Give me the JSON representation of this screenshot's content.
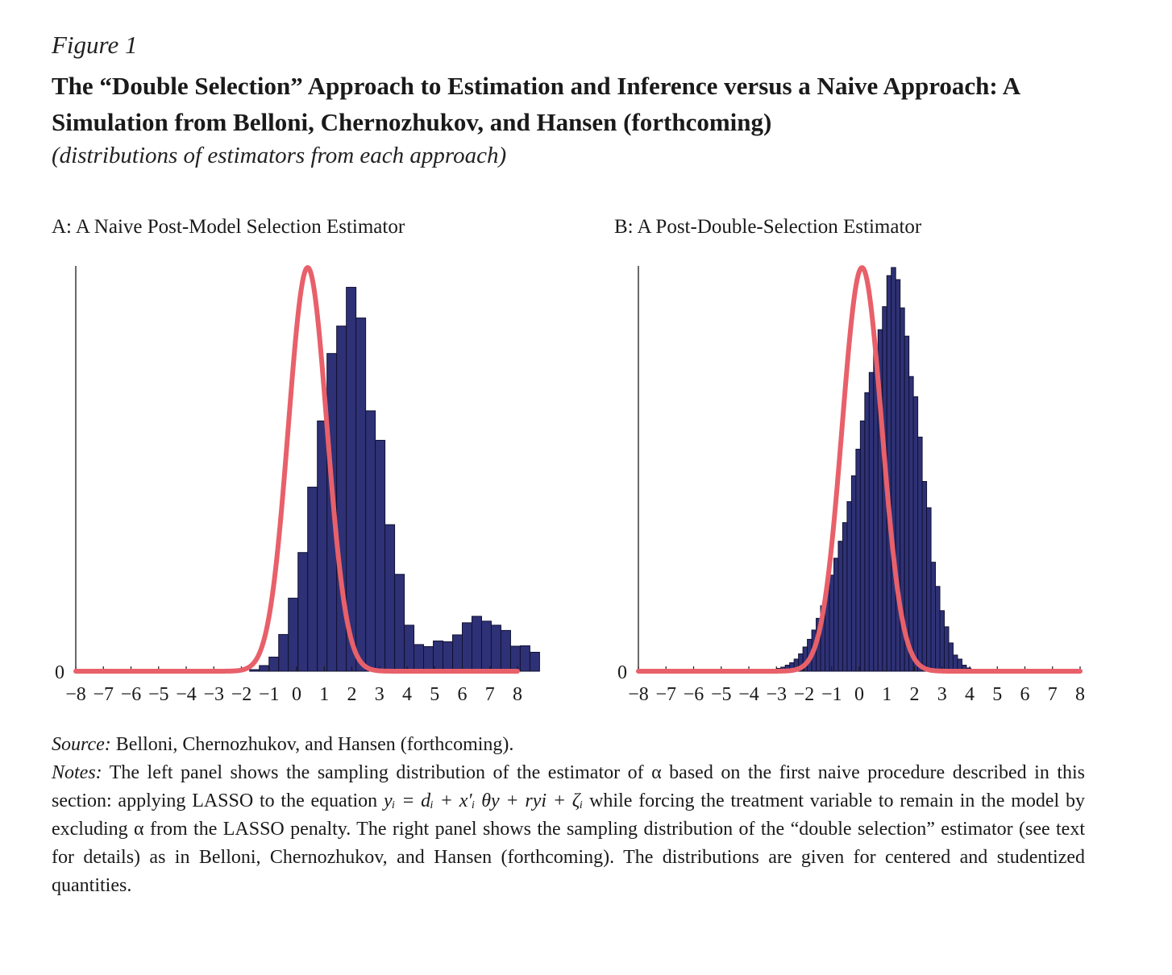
{
  "figure": {
    "label": "Figure 1",
    "title": "The “Double Selection” Approach to Estimation and Inference versus a Naive Approach: A Simulation from Belloni, Chernozhukov, and Hansen (forthcoming)",
    "subtitle": "(distributions of estimators from each approach)"
  },
  "colors": {
    "bar_fill": "#2e3175",
    "bar_edge": "#111133",
    "curve": "#e8606a",
    "axis": "#1a1a1a"
  },
  "chart_data": [
    {
      "type": "bar",
      "title": "A: A Naive Post-Model Selection Estimator",
      "x_ticks": [
        "−8",
        "−7",
        "−6",
        "−5",
        "−4",
        "−3",
        "−2",
        "−1",
        "0",
        "1",
        "2",
        "3",
        "4",
        "5",
        "6",
        "7",
        "8"
      ],
      "y_ticks": [
        "0"
      ],
      "xlim": [
        -8,
        8
      ],
      "ylim": [
        0,
        1
      ],
      "bin_width": 0.35,
      "bin_edges_start": -8,
      "values": [
        0,
        0,
        0,
        0,
        0,
        0,
        0,
        0,
        0,
        0,
        0,
        0,
        0,
        0,
        0,
        0,
        0,
        0,
        0.004,
        0.014,
        0.035,
        0.091,
        0.181,
        0.294,
        0.456,
        0.62,
        0.787,
        0.855,
        0.951,
        0.875,
        0.645,
        0.572,
        0.363,
        0.24,
        0.114,
        0.066,
        0.061,
        0.075,
        0.073,
        0.09,
        0.12,
        0.136,
        0.124,
        0.114,
        0.101,
        0.062,
        0.063,
        0.047
      ],
      "series": [
        {
          "type": "line",
          "description": "normal density reference curve",
          "mean": 0.4,
          "sd": 0.7,
          "peak": 1.0
        }
      ]
    },
    {
      "type": "bar",
      "title": "B: A Post-Double-Selection Estimator",
      "x_ticks": [
        "−8",
        "−7",
        "−6",
        "−5",
        "−4",
        "−3",
        "−2",
        "−1",
        "0",
        "1",
        "2",
        "3",
        "4",
        "5",
        "6",
        "7",
        "8"
      ],
      "y_ticks": [
        "0"
      ],
      "xlim": [
        -8,
        8
      ],
      "ylim": [
        0,
        1
      ],
      "bin_width": 0.16,
      "bin_edges_start": -3.64,
      "values": [
        0.002,
        0.003,
        0.004,
        0.005,
        0.007,
        0.01,
        0.015,
        0.021,
        0.03,
        0.043,
        0.06,
        0.079,
        0.102,
        0.131,
        0.162,
        0.2,
        0.238,
        0.28,
        0.322,
        0.368,
        0.42,
        0.484,
        0.55,
        0.62,
        0.69,
        0.74,
        0.79,
        0.846,
        0.903,
        0.98,
        1.0,
        0.97,
        0.9,
        0.83,
        0.73,
        0.68,
        0.58,
        0.47,
        0.405,
        0.27,
        0.21,
        0.15,
        0.11,
        0.07,
        0.04,
        0.03,
        0.015,
        0.008
      ],
      "series": [
        {
          "type": "line",
          "description": "normal density reference curve",
          "mean": 0.1,
          "sd": 0.72,
          "peak": 1.0
        }
      ]
    }
  ],
  "footer": {
    "source_label": "Source:",
    "source_text": "Belloni, Chernozhukov, and Hansen (forthcoming).",
    "notes_label": "Notes:",
    "notes_1": "The left panel shows the sampling distribution of the estimator of α based on the first naive procedure described in this section: applying LASSO to the equation",
    "equation": "yᵢ = dᵢ + x′ᵢ θy + ryi + ζᵢ",
    "notes_2": "while forcing the treatment variable to remain in the model by excluding α from the LASSO penalty. The right panel shows the sampling distribution of the “double selection” estimator (see text for details) as in Belloni, Chernozhukov, and Hansen (forthcoming). The distributions are given for centered and studentized quantities."
  }
}
